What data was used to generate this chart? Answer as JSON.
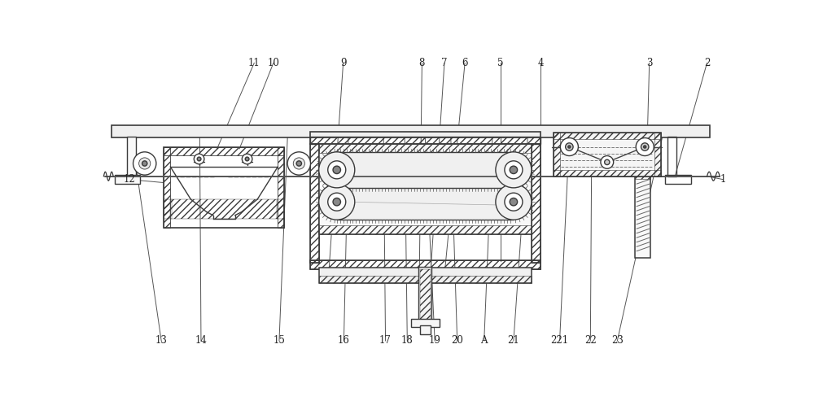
{
  "bg_color": "#ffffff",
  "line_color": "#3a3a3a",
  "label_color": "#222222",
  "figsize": [
    10.0,
    4.93
  ],
  "dpi": 100,
  "lw_main": 1.0,
  "lw_thin": 0.6,
  "lw_thick": 1.5
}
